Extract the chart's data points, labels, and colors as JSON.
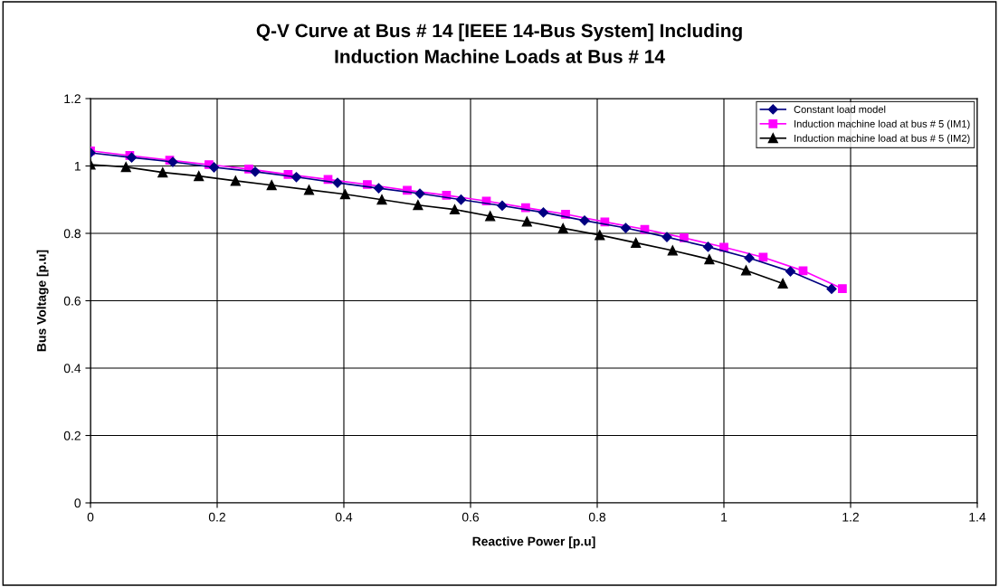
{
  "chart_data": {
    "type": "line",
    "title": "Q-V Curve at Bus # 14 [IEEE 14-Bus System] Including\nInduction Machine Loads at Bus # 14",
    "xlabel": "Reactive Power [p.u]",
    "ylabel": "Bus Voltage [p.u]",
    "xlim": [
      0,
      1.4
    ],
    "xticks": [
      0,
      0.2,
      0.4,
      0.6,
      0.8,
      1,
      1.2,
      1.4
    ],
    "ylim": [
      0,
      1.2
    ],
    "yticks": [
      0,
      0.2,
      0.4,
      0.6,
      0.8,
      1,
      1.2
    ],
    "grid": true,
    "legend": "top right",
    "series": [
      {
        "name": "Constant load model",
        "color": "#000080",
        "marker": "diamond",
        "x": [
          0,
          0.065,
          0.13,
          0.195,
          0.26,
          0.325,
          0.39,
          0.455,
          0.52,
          0.585,
          0.65,
          0.715,
          0.78,
          0.845,
          0.91,
          0.975,
          1.04,
          1.105,
          1.17
        ],
        "values": [
          1.039,
          1.025,
          1.012,
          0.996,
          0.983,
          0.967,
          0.95,
          0.934,
          0.918,
          0.9,
          0.882,
          0.862,
          0.838,
          0.816,
          0.789,
          0.76,
          0.727,
          0.687,
          0.635
        ]
      },
      {
        "name": "Induction machine load at bus # 5 (IM1)",
        "color": "#ff00ff",
        "marker": "square",
        "x": [
          0,
          0.062,
          0.125,
          0.187,
          0.25,
          0.312,
          0.375,
          0.437,
          0.5,
          0.562,
          0.625,
          0.687,
          0.75,
          0.812,
          0.875,
          0.937,
          1.0,
          1.062,
          1.125,
          1.187
        ],
        "values": [
          1.045,
          1.031,
          1.017,
          1.004,
          0.991,
          0.975,
          0.96,
          0.945,
          0.928,
          0.913,
          0.896,
          0.876,
          0.857,
          0.834,
          0.812,
          0.787,
          0.759,
          0.729,
          0.689,
          0.636
        ]
      },
      {
        "name": "Induction machine load at bus # 5 (IM2)",
        "color": "#000000",
        "marker": "triangle",
        "x": [
          0,
          0.056,
          0.114,
          0.171,
          0.229,
          0.286,
          0.345,
          0.402,
          0.46,
          0.517,
          0.575,
          0.631,
          0.689,
          0.746,
          0.804,
          0.861,
          0.919,
          0.977,
          1.035,
          1.093
        ],
        "values": [
          1.004,
          0.997,
          0.981,
          0.97,
          0.956,
          0.943,
          0.929,
          0.916,
          0.9,
          0.884,
          0.871,
          0.851,
          0.835,
          0.815,
          0.795,
          0.772,
          0.749,
          0.723,
          0.69,
          0.651
        ]
      }
    ]
  }
}
